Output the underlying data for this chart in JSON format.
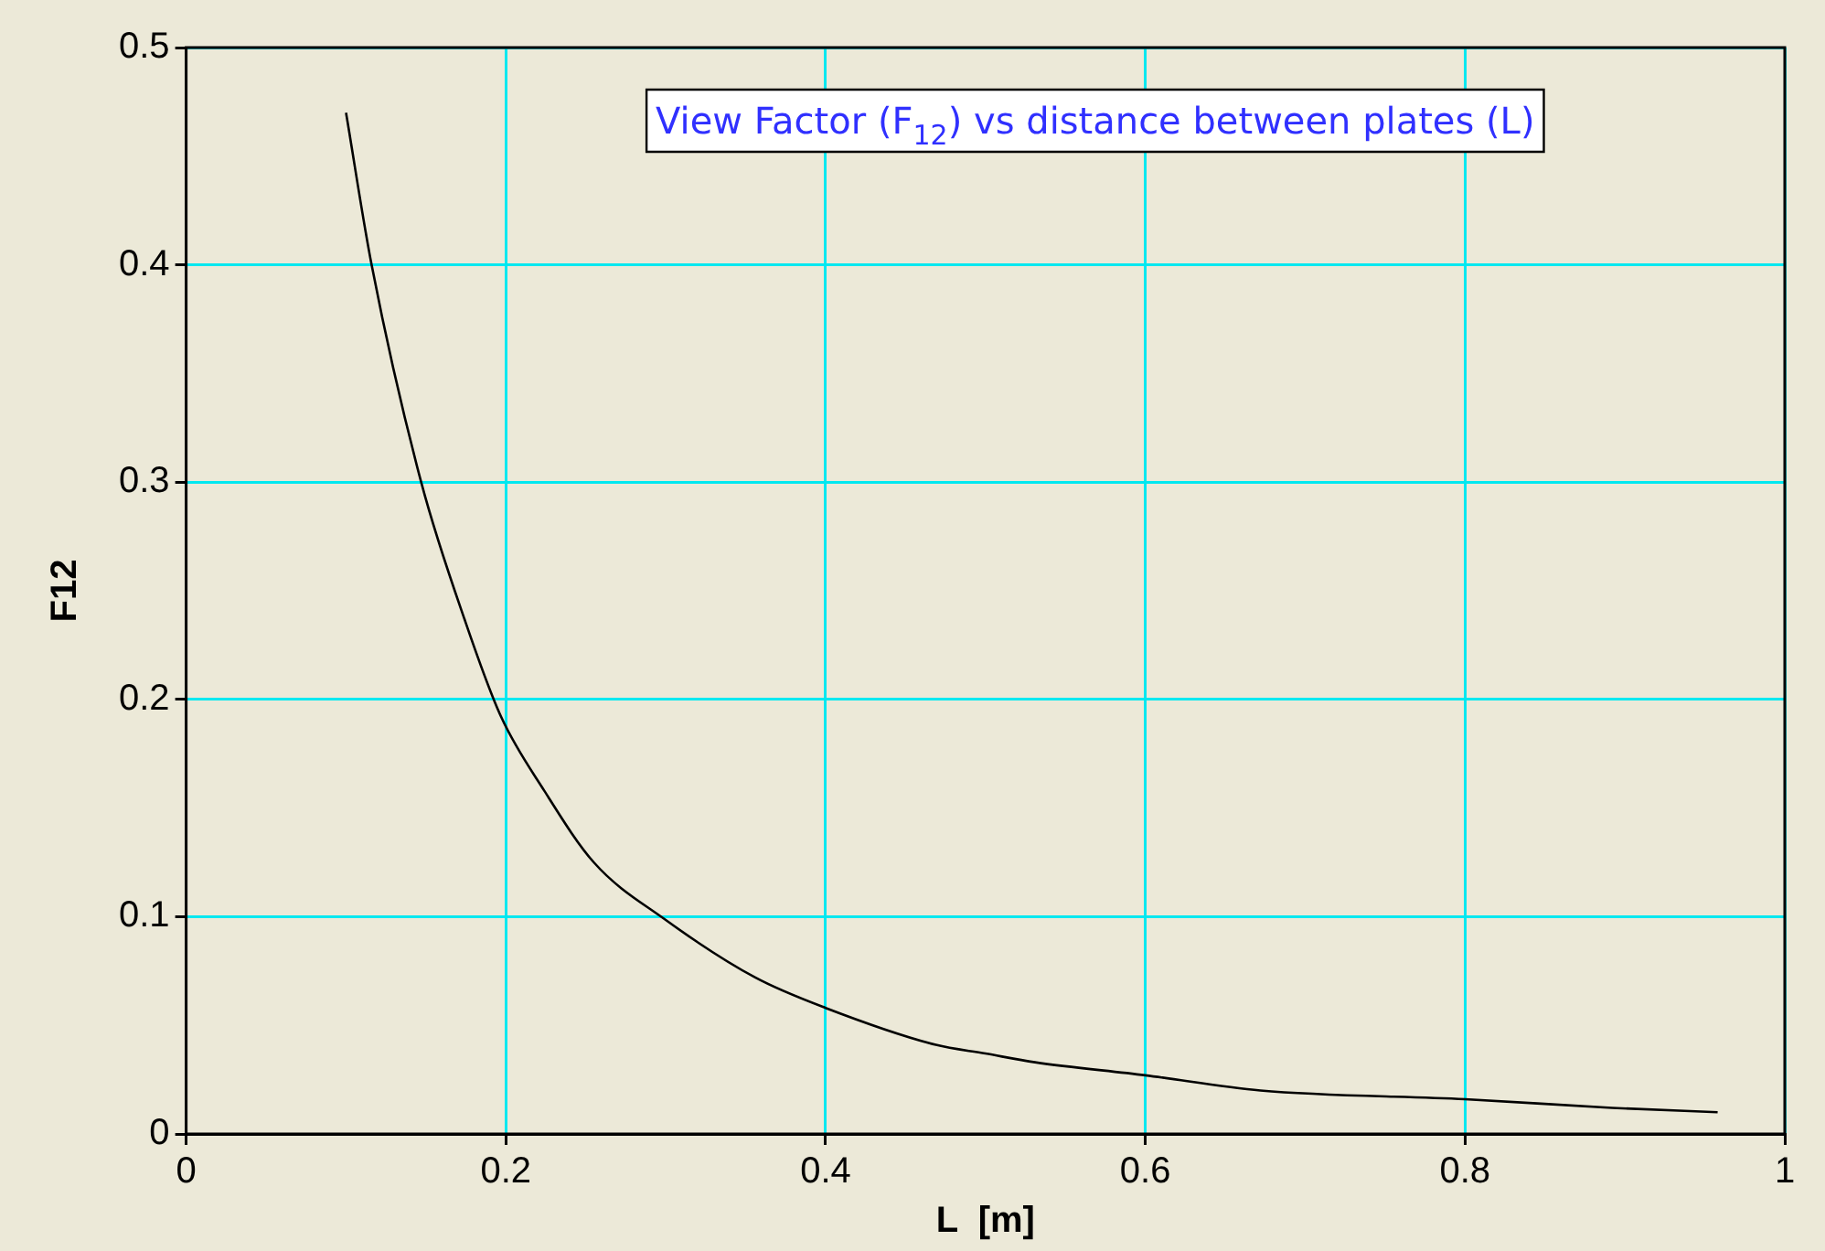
{
  "chart_data": {
    "type": "line",
    "title": "View Factor (F$_{12}$) vs distance between plates (L)",
    "xlabel": "L  [m]",
    "ylabel": "F12",
    "xlim": [
      0,
      1
    ],
    "xticks": [
      0,
      0.2,
      0.4,
      0.6,
      0.8,
      1
    ],
    "ylim": [
      0,
      0.5
    ],
    "yticks": [
      0,
      0.1,
      0.2,
      0.3,
      0.4,
      0.5
    ],
    "grid": true,
    "legend": false,
    "marker": "none",
    "line_style": "solid",
    "series": [
      {
        "color": "#000000",
        "x": [
          0.1,
          0.116,
          0.147,
          0.175,
          0.197,
          0.224,
          0.255,
          0.299,
          0.356,
          0.4,
          0.469,
          0.5,
          0.531,
          0.6,
          0.672,
          0.8,
          0.892,
          0.958
        ],
        "values": [
          0.47,
          0.4,
          0.3,
          0.235,
          0.192,
          0.158,
          0.125,
          0.099,
          0.072,
          0.058,
          0.041,
          0.037,
          0.033,
          0.027,
          0.02,
          0.016,
          0.012,
          0.01
        ]
      }
    ]
  }
}
